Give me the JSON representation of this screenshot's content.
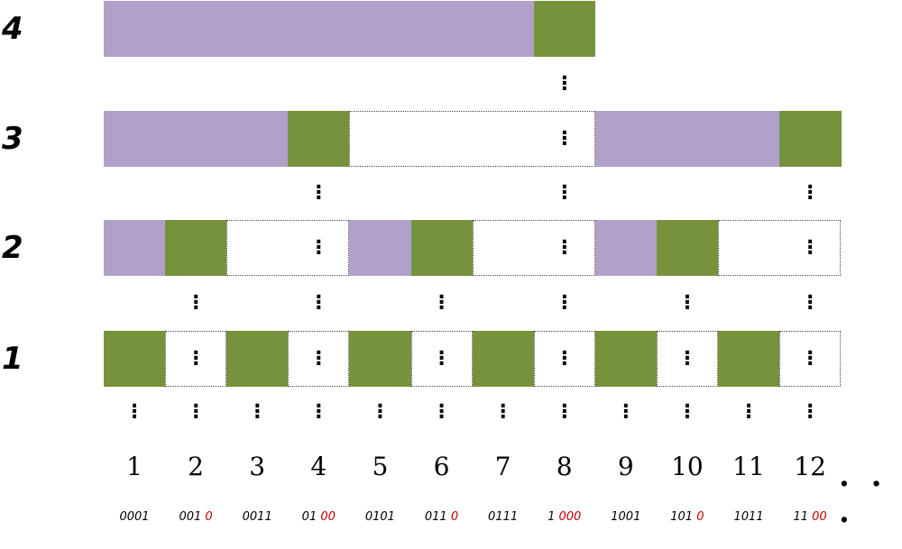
{
  "levels": [
    {
      "label": "1",
      "cells": [
        "green",
        "empty",
        "green",
        "empty",
        "green",
        "empty",
        "green",
        "empty",
        "green",
        "empty",
        "green",
        "empty"
      ]
    },
    {
      "label": "2",
      "cells": [
        "purple",
        "green",
        "empty",
        "empty",
        "purple",
        "green",
        "empty",
        "empty",
        "purple",
        "green",
        "empty",
        "empty"
      ]
    },
    {
      "label": "3",
      "cells": [
        "purple",
        "purple",
        "purple",
        "green",
        "empty",
        "empty",
        "empty",
        "empty",
        "purple",
        "purple",
        "purple",
        "green"
      ]
    },
    {
      "label": "4",
      "cells": [
        "purple",
        "purple",
        "purple",
        "purple",
        "purple",
        "purple",
        "purple",
        "green"
      ]
    }
  ],
  "empty_runs": {
    "1": [
      [
        1,
        1
      ],
      [
        3,
        3
      ],
      [
        5,
        5
      ],
      [
        7,
        7
      ],
      [
        9,
        9
      ],
      [
        11,
        11
      ]
    ],
    "2": [
      [
        2,
        3
      ],
      [
        6,
        7
      ],
      [
        10,
        11
      ]
    ],
    "3": [
      [
        4,
        7
      ]
    ]
  },
  "numbers": [
    "1",
    "2",
    "3",
    "4",
    "5",
    "6",
    "7",
    "8",
    "9",
    "10",
    "11",
    "12"
  ],
  "binaries": [
    {
      "prefix": "0001",
      "suffix": ""
    },
    {
      "prefix": "001 ",
      "suffix": "0"
    },
    {
      "prefix": "0011",
      "suffix": ""
    },
    {
      "prefix": "01 ",
      "suffix": "00"
    },
    {
      "prefix": "0101",
      "suffix": ""
    },
    {
      "prefix": "011 ",
      "suffix": "0"
    },
    {
      "prefix": "0111",
      "suffix": ""
    },
    {
      "prefix": "1 ",
      "suffix": "000"
    },
    {
      "prefix": "1001",
      "suffix": ""
    },
    {
      "prefix": "101 ",
      "suffix": "0"
    },
    {
      "prefix": "1011",
      "suffix": ""
    },
    {
      "prefix": "11 ",
      "suffix": "00"
    }
  ],
  "ellipsis": ". . .",
  "colors": {
    "purple": "#b1a0c9",
    "green": "#76923c",
    "highlight": "#c00000"
  }
}
